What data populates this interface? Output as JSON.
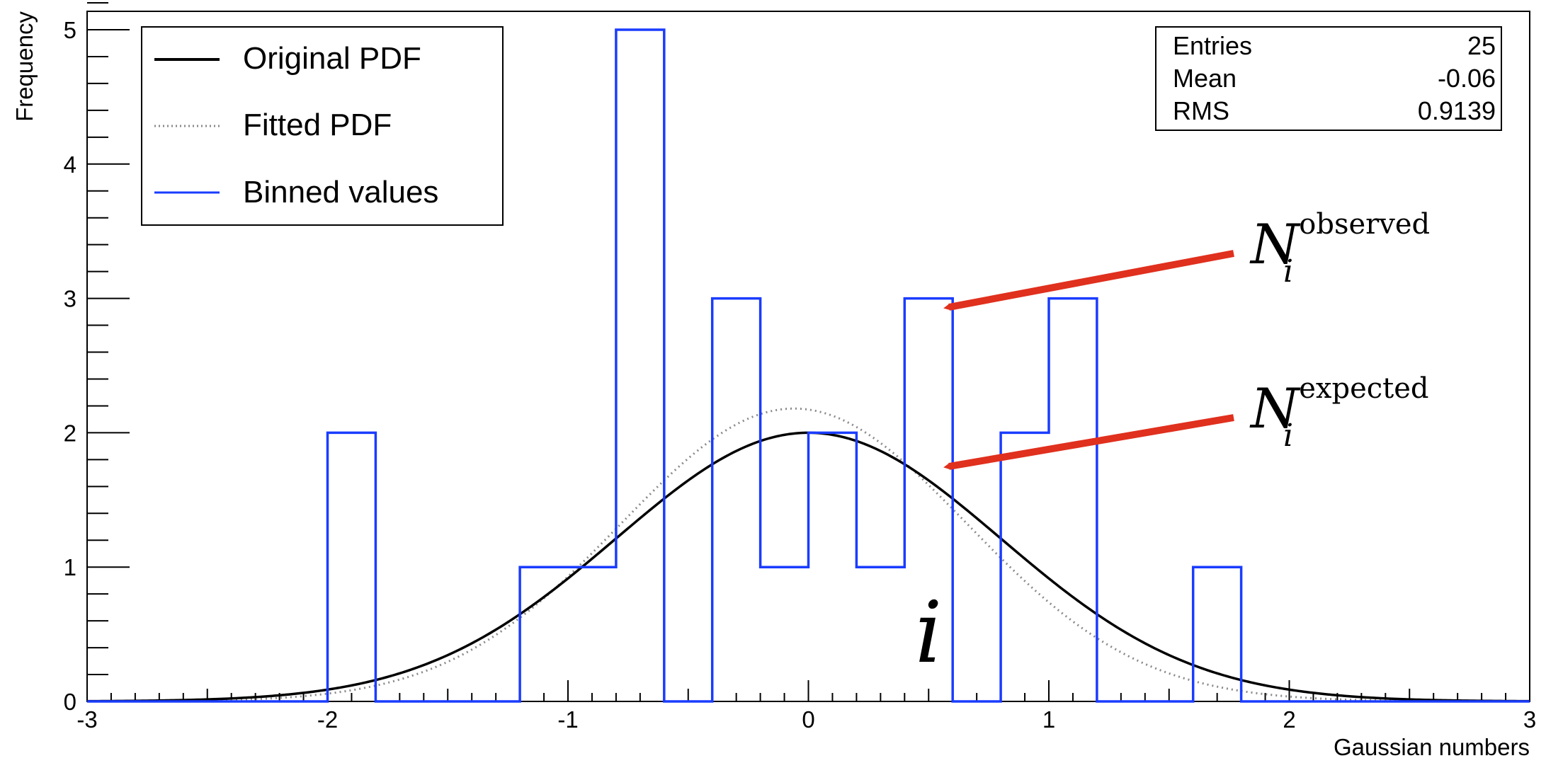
{
  "chart_data": {
    "type": "bar",
    "xlabel": "Gaussian numbers",
    "ylabel": "Frequency",
    "xlim": [
      -3,
      3
    ],
    "ylim": [
      0,
      5.25
    ],
    "x_ticks": [
      -3,
      -2,
      -1,
      0,
      1,
      2,
      3
    ],
    "x_tick_labels": [
      "-3",
      "-2",
      "-1",
      "0",
      "1",
      "2",
      "3"
    ],
    "y_ticks": [
      0,
      1,
      2,
      3,
      4,
      5
    ],
    "y_tick_labels": [
      "0",
      "1",
      "2",
      "3",
      "4",
      "5"
    ],
    "grid": false,
    "legend_position": "top-left",
    "series": [
      {
        "name": "Binned values",
        "kind": "histogram",
        "color": "#1a3cff",
        "bin_edges": [
          -3.0,
          -2.8,
          -2.6,
          -2.4,
          -2.2,
          -2.0,
          -1.8,
          -1.6,
          -1.4,
          -1.2,
          -1.0,
          -0.8,
          -0.6,
          -0.4,
          -0.2,
          0.0,
          0.2,
          0.4,
          0.6,
          0.8,
          1.0,
          1.2,
          1.4,
          1.6,
          1.8,
          2.0,
          2.2,
          2.4,
          2.6,
          2.8,
          3.0
        ],
        "values": [
          0,
          0,
          0,
          0,
          0,
          2,
          0,
          0,
          0,
          1,
          1,
          5,
          0,
          3,
          1,
          2,
          1,
          3,
          0,
          2,
          3,
          0,
          0,
          1,
          0,
          0,
          0,
          0,
          0,
          0
        ]
      },
      {
        "name": "Original PDF",
        "kind": "curve",
        "color": "#000000",
        "style": "solid",
        "curve": {
          "amplitude": 2.0,
          "mean": 0.0,
          "sigma": 0.8
        }
      },
      {
        "name": "Fitted PDF",
        "kind": "curve",
        "color": "#8a8a8a",
        "style": "dotted",
        "curve": {
          "amplitude": 2.18,
          "mean": -0.06,
          "sigma": 0.72
        }
      }
    ],
    "stats_box": {
      "rows": [
        {
          "label": "Entries",
          "value": "25"
        },
        {
          "label": "Mean",
          "value": "-0.06"
        },
        {
          "label": "RMS",
          "value": "0.9139"
        }
      ]
    },
    "annotations": [
      {
        "base": "N",
        "subscript": "i",
        "superscript": "observed",
        "points_to": {
          "x": 0.5,
          "y": 3
        },
        "arrow_color": "#e0301e"
      },
      {
        "base": "N",
        "subscript": "i",
        "superscript": "expected",
        "points_to": {
          "x": 0.5,
          "y": 1.77
        },
        "arrow_color": "#e0301e"
      },
      {
        "text": "i",
        "anchor": {
          "x": 0.5,
          "y": 0.5
        }
      }
    ]
  }
}
